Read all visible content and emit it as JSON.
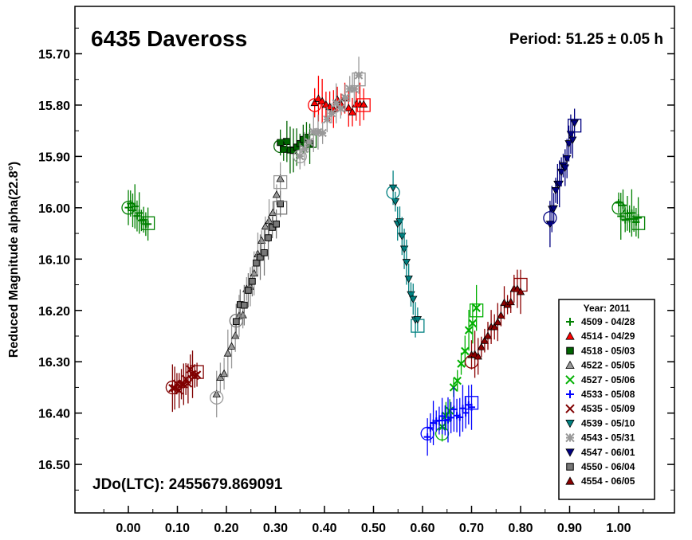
{
  "chart_data": {
    "type": "scatter",
    "title": "6435 Daveross",
    "period_label": "Period: 51.25 ± 0.05 h",
    "epoch_label": "JDo(LTC): 2455679.869091",
    "xlabel": "",
    "ylabel": "Reduced Magnitude alpha(22.8°)",
    "xlim": [
      -0.1,
      1.12
    ],
    "ylim": [
      16.6,
      15.65
    ],
    "y_inverted": true,
    "grid": false,
    "legend_position": "bottom-right",
    "x_ticks": [
      0.0,
      0.1,
      0.2,
      0.3,
      0.4,
      0.5,
      0.6,
      0.7,
      0.8,
      0.9,
      1.0
    ],
    "x_tick_labels": [
      "0.00",
      "0.10",
      "0.20",
      "0.30",
      "0.40",
      "0.50",
      "0.60",
      "0.70",
      "0.80",
      "0.90",
      "1.00"
    ],
    "y_ticks": [
      15.7,
      15.8,
      15.9,
      16.0,
      16.1,
      16.2,
      16.3,
      16.4,
      16.5
    ],
    "y_tick_labels": [
      "15.70",
      "15.80",
      "15.90",
      "16.00",
      "16.10",
      "16.20",
      "16.30",
      "16.40",
      "16.50"
    ],
    "legend_title": "Year: 2011",
    "series": [
      {
        "name": "4509 - 04/28",
        "marker": "plus",
        "color": "#008000",
        "x_range": [
          0.0,
          0.04
        ],
        "y_start": 16.0,
        "y_end": 16.03,
        "count": 10,
        "x_repeat": 1.0
      },
      {
        "name": "4514 - 04/29",
        "marker": "triangle-up",
        "color": "#ff0000",
        "x_range": [
          0.38,
          0.48
        ],
        "y_start": 15.8,
        "y_end": 15.8,
        "count": 14
      },
      {
        "name": "4518 - 05/03",
        "marker": "square",
        "color": "#006400",
        "x_range": [
          0.31,
          0.37
        ],
        "y_start": 15.88,
        "y_end": 15.87,
        "count": 10
      },
      {
        "name": "4522 - 05/05",
        "marker": "triangle-up",
        "color": "#999999",
        "x_range": [
          0.18,
          0.31
        ],
        "y_start": 16.37,
        "y_end": 15.95,
        "count": 18
      },
      {
        "name": "4527 - 05/06",
        "marker": "x",
        "color": "#00b000",
        "x_range": [
          0.64,
          0.71
        ],
        "y_start": 16.44,
        "y_end": 16.2,
        "count": 10
      },
      {
        "name": "4533 - 05/08",
        "marker": "plus",
        "color": "#0000ff",
        "x_range": [
          0.61,
          0.7
        ],
        "y_start": 16.44,
        "y_end": 16.38,
        "count": 16
      },
      {
        "name": "4535 - 05/09",
        "marker": "x",
        "color": "#800000",
        "x_range": [
          0.09,
          0.14
        ],
        "y_start": 16.35,
        "y_end": 16.32,
        "count": 12
      },
      {
        "name": "4539 - 05/10",
        "marker": "triangle-down",
        "color": "#008080",
        "x_range": [
          0.54,
          0.59
        ],
        "y_start": 15.97,
        "y_end": 16.23,
        "count": 12
      },
      {
        "name": "4543 - 05/31",
        "marker": "asterisk",
        "color": "#999999",
        "x_range": [
          0.35,
          0.47
        ],
        "y_start": 15.9,
        "y_end": 15.75,
        "count": 14
      },
      {
        "name": "4547 - 06/01",
        "marker": "triangle-down",
        "color": "#000080",
        "x_range": [
          0.86,
          0.91
        ],
        "y_start": 16.02,
        "y_end": 15.84,
        "count": 14
      },
      {
        "name": "4550 - 06/04",
        "marker": "square",
        "color": "#777777",
        "x_range": [
          0.22,
          0.31
        ],
        "y_start": 16.22,
        "y_end": 16.0,
        "count": 12
      },
      {
        "name": "4554 - 06/05",
        "marker": "triangle-up",
        "color": "#8b0000",
        "x_range": [
          0.7,
          0.8
        ],
        "y_start": 16.3,
        "y_end": 16.15,
        "count": 16
      }
    ]
  }
}
